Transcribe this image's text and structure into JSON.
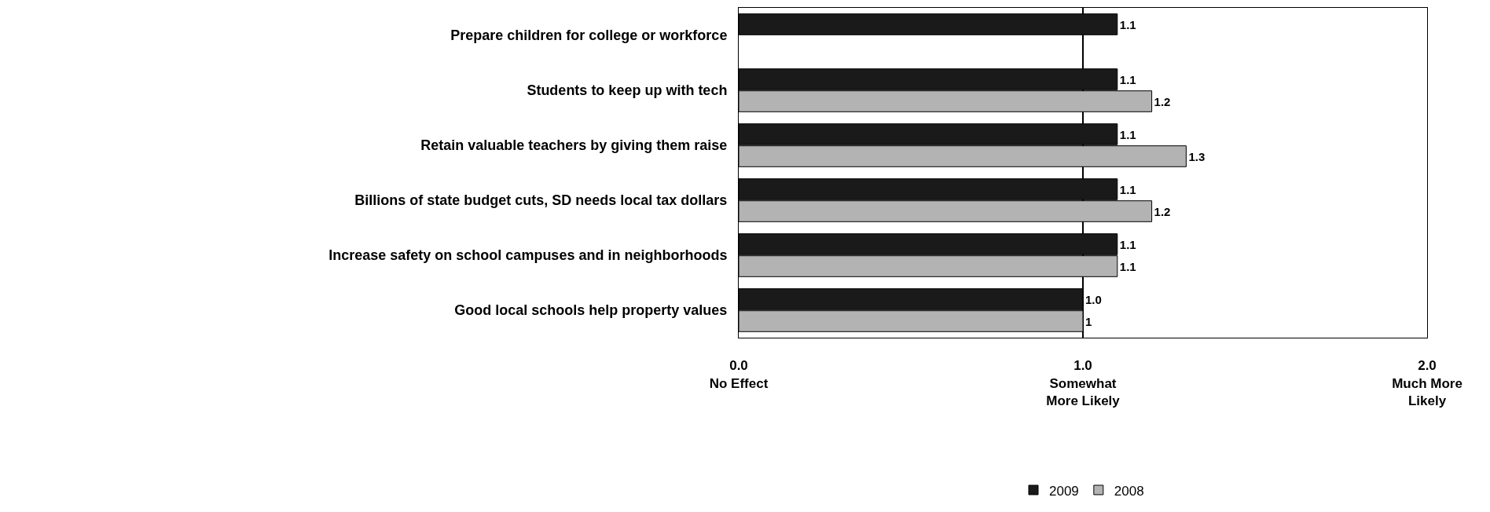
{
  "chart_data": {
    "type": "bar",
    "orientation": "horizontal",
    "categories": [
      "Prepare children for college or workforce",
      "Students to keep up with tech",
      "Retain valuable teachers by giving them raise",
      "Billions of state budget cuts, SD needs local tax dollars",
      "Increase safety on school campuses and in neighborhoods",
      "Good local schools help property values"
    ],
    "series": [
      {
        "name": "2009",
        "color": "#1a1a1a",
        "values": [
          1.1,
          1.1,
          1.1,
          1.1,
          1.1,
          1.0
        ],
        "value_labels": [
          "1.1",
          "1.1",
          "1.1",
          "1.1",
          "1.1",
          "1.0"
        ]
      },
      {
        "name": "2008",
        "color": "#b3b3b3",
        "values": [
          null,
          1.2,
          1.3,
          1.2,
          1.1,
          1
        ],
        "value_labels": [
          null,
          "1.2",
          "1.3",
          "1.2",
          "1.1",
          "1"
        ]
      }
    ],
    "xlim": [
      0,
      2
    ],
    "xticks": [
      {
        "value": 0,
        "label": "0.0\nNo Effect"
      },
      {
        "value": 1,
        "label": "1.0\nSomewhat\nMore Likely"
      },
      {
        "value": 2,
        "label": "2.0\nMuch More\nLikely"
      }
    ],
    "grid": "x",
    "legend": "bottom"
  }
}
